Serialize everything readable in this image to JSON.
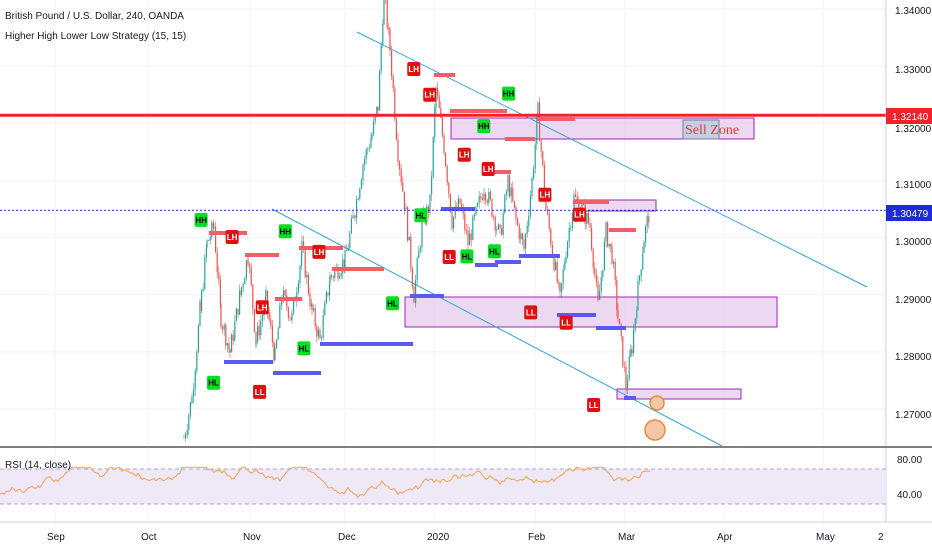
{
  "chart_data": {
    "type": "candlestick",
    "title": "British Pound / U.S. Dollar, 240, OANDA",
    "subtitle": "Higher High Lower Low Strategy (15, 15)",
    "x_ticks": [
      "Sep",
      "Oct",
      "Nov",
      "Dec",
      "2020",
      "Feb",
      "Mar",
      "Apr",
      "May",
      "2"
    ],
    "y_ticks": [
      "1.34000",
      "1.33000",
      "1.32000",
      "1.31000",
      "1.30000",
      "1.29000",
      "1.28000",
      "1.27000"
    ],
    "ylim": [
      1.2648,
      1.3448
    ],
    "price_labels": [
      {
        "value": 1.3214,
        "text": "1.32140",
        "color": "#f0232d"
      },
      {
        "value": 1.30479,
        "text": "1.30479",
        "color": "#1e2bd6"
      }
    ],
    "sell_zone_label": "Sell Zone",
    "markers": [
      {
        "label": "HH",
        "x": 0.227,
        "y": 1.3031
      },
      {
        "label": "LH",
        "x": 0.262,
        "y": 1.3001
      },
      {
        "label": "LH",
        "x": 0.296,
        "y": 1.2878
      },
      {
        "label": "HH",
        "x": 0.322,
        "y": 1.3011
      },
      {
        "label": "LH",
        "x": 0.36,
        "y": 1.2975
      },
      {
        "label": "HL",
        "x": 0.241,
        "y": 1.2746
      },
      {
        "label": "LL",
        "x": 0.293,
        "y": 1.273
      },
      {
        "label": "HL",
        "x": 0.343,
        "y": 1.2806
      },
      {
        "label": "LH",
        "x": 0.467,
        "y": 1.3295
      },
      {
        "label": "LH",
        "x": 0.485,
        "y": 1.325
      },
      {
        "label": "HH",
        "x": 0.546,
        "y": 1.3195
      },
      {
        "label": "HH",
        "x": 0.574,
        "y": 1.3252
      },
      {
        "label": "LH",
        "x": 0.524,
        "y": 1.3145
      },
      {
        "label": "LH",
        "x": 0.551,
        "y": 1.312
      },
      {
        "label": "HL",
        "x": 0.443,
        "y": 1.2885
      },
      {
        "label": "HL",
        "x": 0.475,
        "y": 1.3039
      },
      {
        "label": "LL",
        "x": 0.507,
        "y": 1.2966
      },
      {
        "label": "HL",
        "x": 0.527,
        "y": 1.2967
      },
      {
        "label": "HL",
        "x": 0.558,
        "y": 1.2976
      },
      {
        "label": "LH",
        "x": 0.615,
        "y": 1.3075
      },
      {
        "label": "LH",
        "x": 0.654,
        "y": 1.304
      },
      {
        "label": "LL",
        "x": 0.599,
        "y": 1.2869
      },
      {
        "label": "LL",
        "x": 0.639,
        "y": 1.2851
      },
      {
        "label": "LL",
        "x": 0.67,
        "y": 1.2707
      }
    ],
    "rsi": {
      "title": "RSI (14, close)",
      "levels": [
        80,
        40
      ],
      "level_labels": [
        "80.00",
        "40.00"
      ]
    }
  }
}
